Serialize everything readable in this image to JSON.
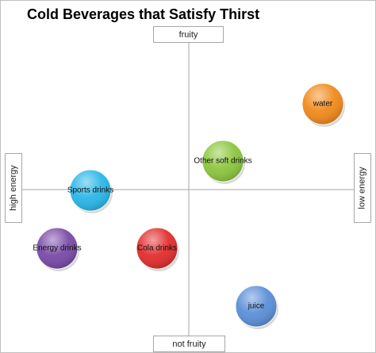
{
  "title": "Cold Beverages that Satisfy Thirst",
  "axes": {
    "top": "fruity",
    "bottom": "not fruity",
    "left": "high energy",
    "right": "low energy"
  },
  "bubbles": [
    {
      "label": "water",
      "color": "#f08a1c"
    },
    {
      "label": "Other soft drinks",
      "color": "#8cc63e"
    },
    {
      "label": "Sports drinks",
      "color": "#29b7e8"
    },
    {
      "label": "Energy drinks",
      "color": "#7a4aa8"
    },
    {
      "label": "Cola drinks",
      "color": "#e22d2d"
    },
    {
      "label": "juice",
      "color": "#5b8fd8"
    }
  ]
}
